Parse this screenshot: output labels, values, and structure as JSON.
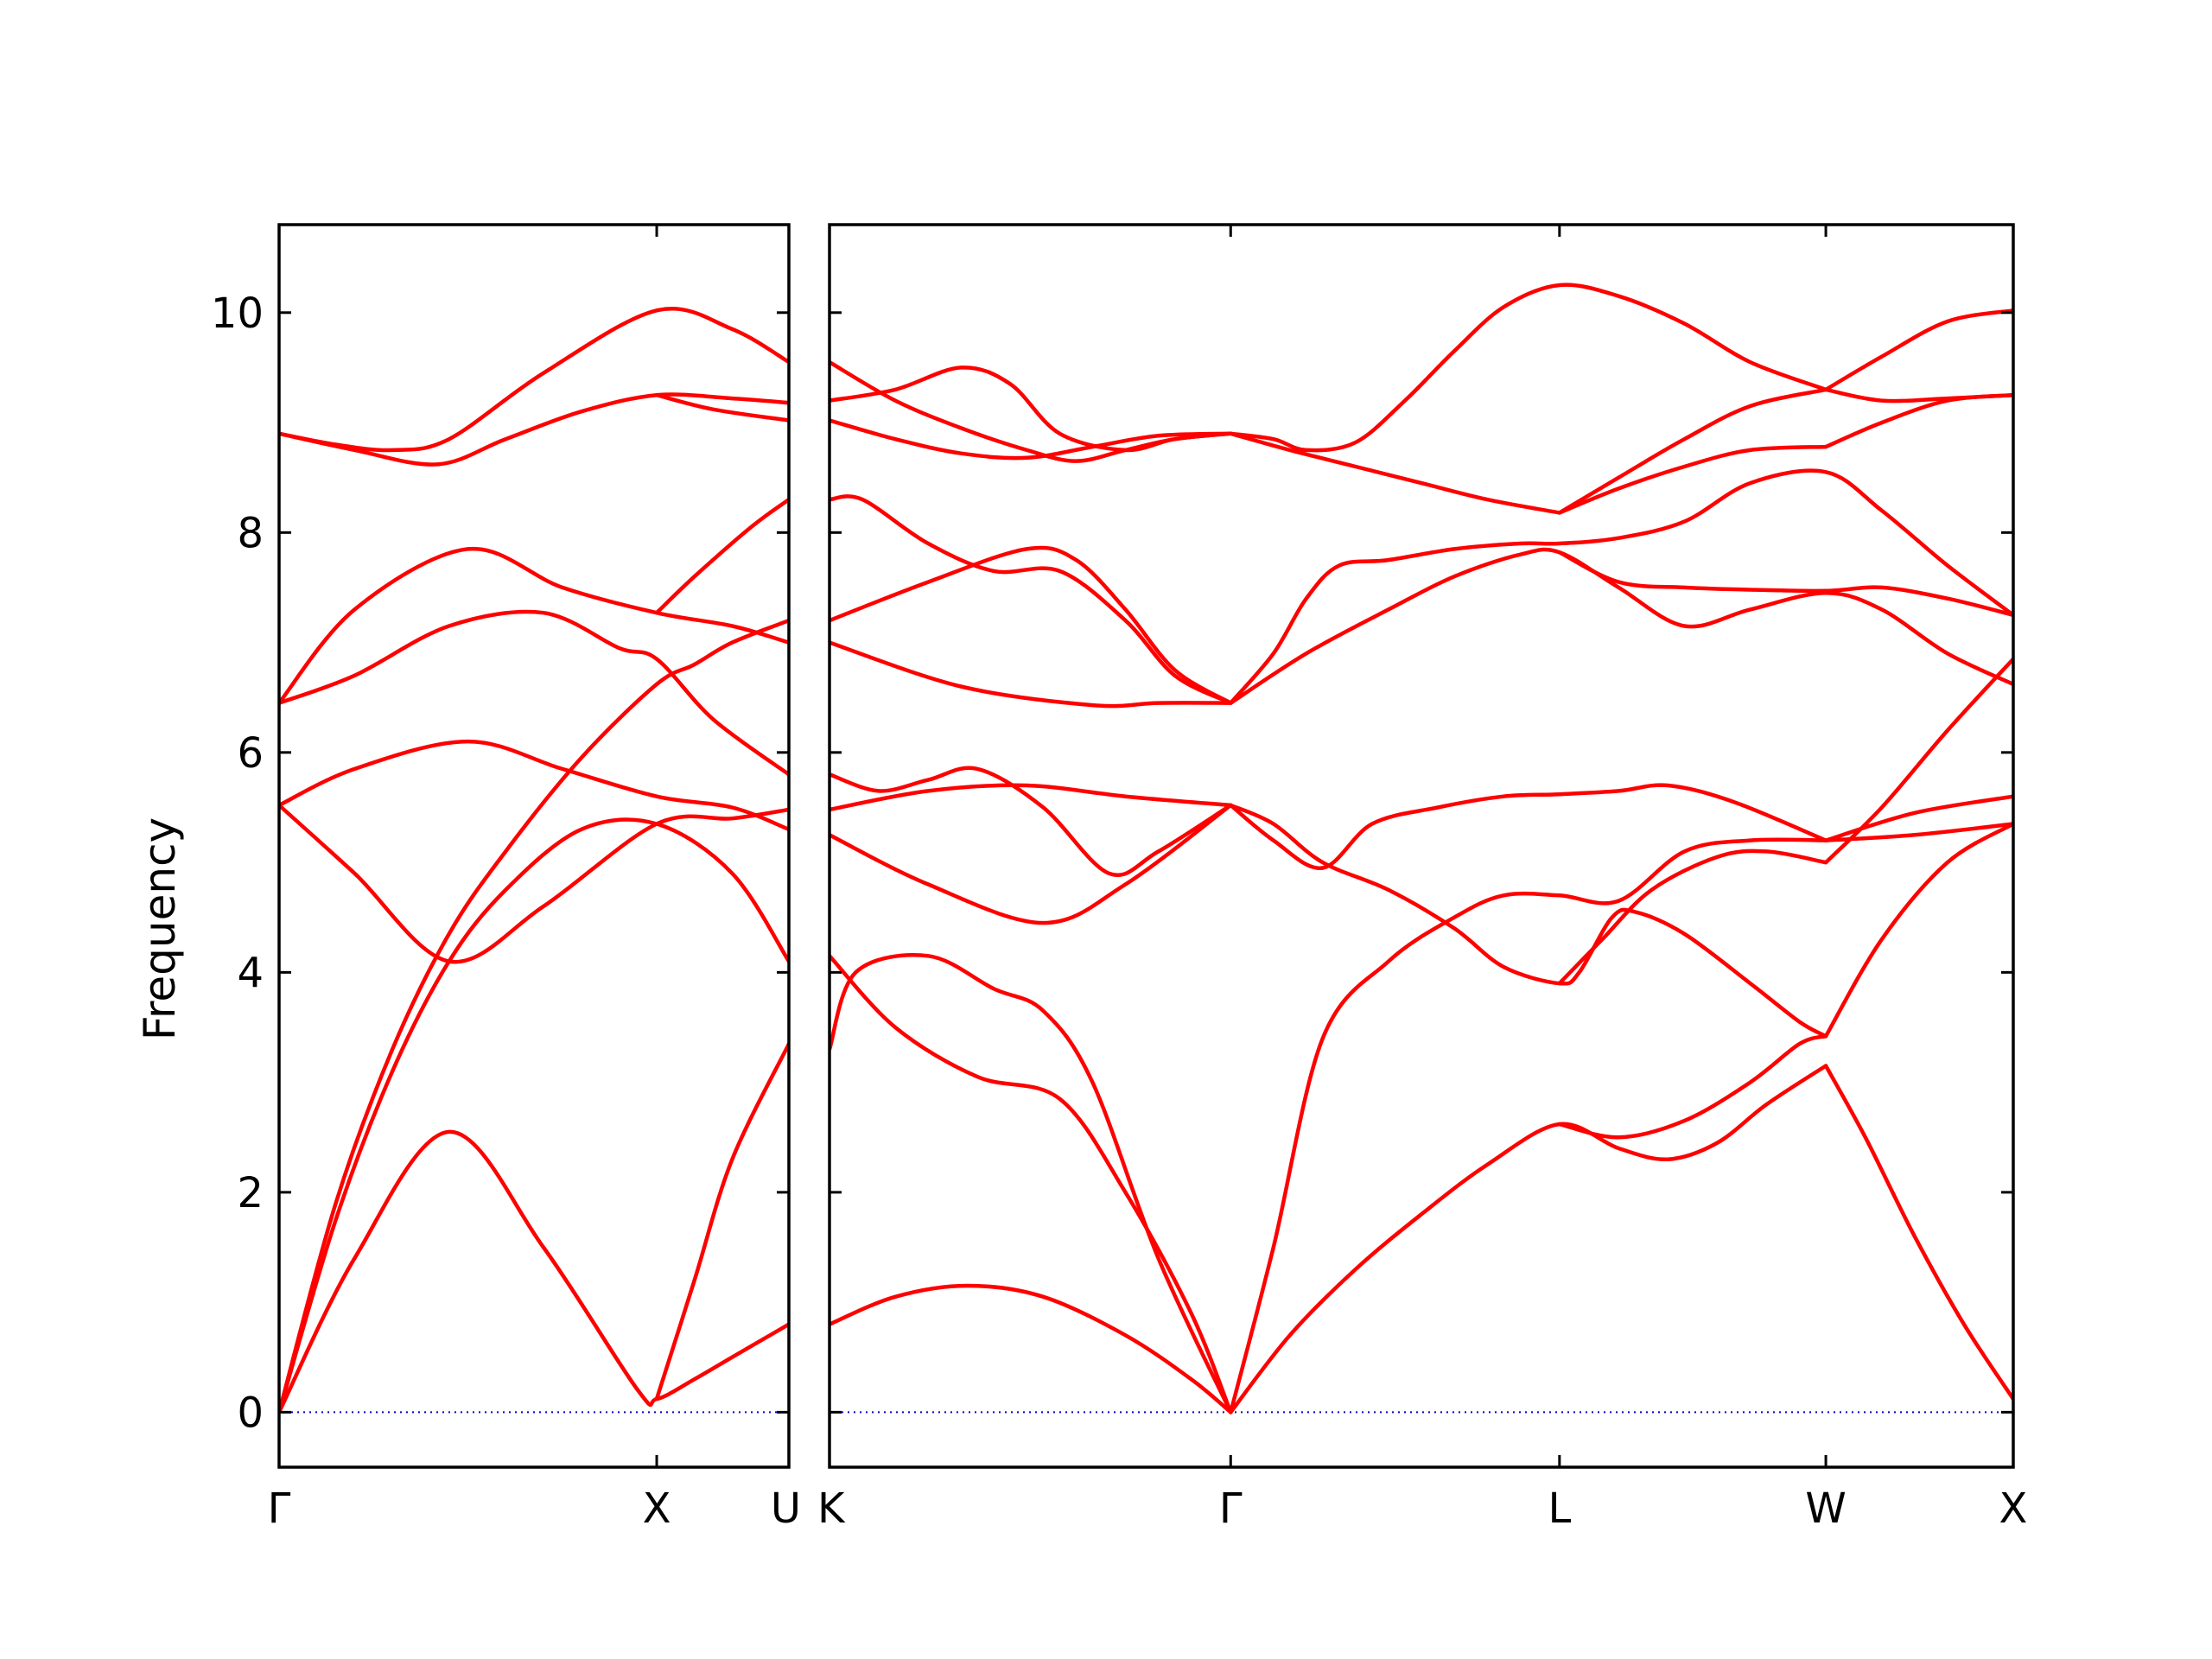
{
  "chart_data": {
    "type": "line",
    "ylabel": "Frequency",
    "ylim": [
      -0.5,
      10.8
    ],
    "yticks": [
      0,
      2,
      4,
      6,
      8,
      10
    ],
    "colors": {
      "band": "#ff0000",
      "zero_line": "#0000cc",
      "frame": "#000000"
    },
    "zero_line": {
      "y": 0,
      "style": "dotted"
    },
    "panels": [
      {
        "name": "left",
        "xlim": [
          0,
          1.35
        ],
        "ticks": [
          {
            "x": 0,
            "label": "Γ"
          },
          {
            "x": 1.0,
            "label": "X"
          },
          {
            "x": 1.35,
            "label": "U"
          }
        ],
        "bands": [
          {
            "x": [
              0,
              0.2,
              0.45,
              0.7,
              0.95,
              1.0,
              1.1,
              1.2,
              1.35
            ],
            "y": [
              0,
              1.4,
              2.55,
              1.5,
              0.2,
              0.12,
              0.3,
              0.5,
              0.8
            ]
          },
          {
            "x": [
              0,
              0.15,
              0.3,
              0.45,
              0.6,
              0.8,
              1.0,
              1.2,
              1.35
            ],
            "y": [
              0,
              1.75,
              3.1,
              4.1,
              4.75,
              5.3,
              5.35,
              4.9,
              4.1
            ]
          },
          {
            "x": [
              0,
              0.15,
              0.3,
              0.45,
              0.6,
              0.8,
              1.0,
              1.1,
              1.2,
              1.35
            ],
            "y": [
              0,
              1.9,
              3.3,
              4.35,
              5.1,
              5.95,
              6.62,
              6.8,
              7.0,
              7.2
            ]
          },
          {
            "x": [
              0,
              0.2,
              0.45,
              0.7,
              1.0,
              1.2,
              1.35
            ],
            "y": [
              5.52,
              4.9,
              4.1,
              4.6,
              5.35,
              5.4,
              5.48
            ]
          },
          {
            "x": [
              0,
              0.2,
              0.5,
              0.75,
              1.0,
              1.2,
              1.35
            ],
            "y": [
              5.52,
              5.85,
              6.1,
              5.85,
              5.6,
              5.5,
              5.3
            ]
          },
          {
            "x": [
              0,
              0.2,
              0.45,
              0.7,
              0.9,
              1.0,
              1.15,
              1.35
            ],
            "y": [
              6.45,
              6.7,
              7.15,
              7.27,
              6.95,
              6.85,
              6.3,
              5.8
            ]
          },
          {
            "x": [
              0,
              0.2,
              0.5,
              0.75,
              1.0,
              1.2,
              1.35
            ],
            "y": [
              6.45,
              7.3,
              7.85,
              7.5,
              7.27,
              7.15,
              7.0
            ]
          },
          {
            "x": [
              0,
              0.15,
              0.3,
              0.45,
              0.7,
              1.0,
              1.2,
              1.35
            ],
            "y": [
              8.9,
              8.8,
              8.75,
              8.85,
              9.45,
              10.02,
              9.85,
              9.55
            ]
          },
          {
            "x": [
              0,
              0.2,
              0.42,
              0.6,
              0.8,
              1.0,
              1.2,
              1.35
            ],
            "y": [
              8.9,
              8.75,
              8.62,
              8.85,
              9.1,
              9.25,
              9.22,
              9.18
            ]
          },
          {
            "x": [
              1.0,
              1.1,
              1.2,
              1.35
            ],
            "y": [
              0.12,
              1.2,
              2.3,
              3.35
            ]
          },
          {
            "x": [
              1.0,
              1.1,
              1.25,
              1.35
            ],
            "y": [
              7.27,
              7.6,
              8.05,
              8.3
            ]
          },
          {
            "x": [
              1.0,
              1.15,
              1.35
            ],
            "y": [
              9.25,
              9.12,
              9.02
            ]
          }
        ]
      },
      {
        "name": "right",
        "xlim": [
          0,
          3.6
        ],
        "ticks": [
          {
            "x": 0,
            "label": "K"
          },
          {
            "x": 1.22,
            "label": "Γ"
          },
          {
            "x": 2.22,
            "label": "L"
          },
          {
            "x": 3.03,
            "label": "W"
          },
          {
            "x": 3.6,
            "label": "X"
          }
        ],
        "bands": [
          {
            "x": [
              0,
              0.2,
              0.42,
              0.65,
              0.9,
              1.1,
              1.22
            ],
            "y": [
              0.8,
              1.05,
              1.15,
              1.05,
              0.7,
              0.3,
              0
            ]
          },
          {
            "x": [
              0,
              0.2,
              0.45,
              0.7,
              0.9,
              1.1,
              1.22
            ],
            "y": [
              4.15,
              3.5,
              3.05,
              2.85,
              2.0,
              0.9,
              0
            ]
          },
          {
            "x": [
              0,
              0.08,
              0.3,
              0.5,
              0.65,
              0.8,
              1.0,
              1.22
            ],
            "y": [
              3.3,
              4.0,
              4.15,
              3.85,
              3.65,
              3.0,
              1.4,
              0
            ]
          },
          {
            "x": [
              1.22,
              1.4,
              1.6,
              1.8,
              2.0,
              2.22,
              2.4,
              2.55,
              2.7,
              2.85,
              3.03
            ],
            "y": [
              0,
              0.7,
              1.3,
              1.8,
              2.25,
              2.62,
              2.4,
              2.3,
              2.45,
              2.8,
              3.15
            ]
          },
          {
            "x": [
              1.22,
              1.35,
              1.5,
              1.7,
              1.9,
              2.05,
              2.22,
              2.4,
              2.6,
              2.8,
              3.03
            ],
            "y": [
              0,
              1.5,
              3.4,
              4.1,
              4.5,
              4.7,
              4.7,
              4.65,
              5.1,
              5.2,
              5.2
            ]
          },
          {
            "x": [
              1.22,
              1.35,
              1.5,
              1.7,
              1.9,
              2.05,
              2.22,
              2.28,
              2.38,
              2.45,
              2.6,
              2.8,
              2.95,
              3.03
            ],
            "y": [
              5.52,
              5.35,
              5.0,
              4.75,
              4.4,
              4.05,
              3.9,
              4.0,
              4.5,
              4.55,
              4.35,
              3.9,
              3.55,
              3.42
            ]
          },
          {
            "x": [
              2.22,
              2.35,
              2.5,
              2.7,
              2.85,
              3.03
            ],
            "y": [
              3.9,
              4.3,
              4.75,
              5.05,
              5.1,
              5.0
            ]
          },
          {
            "x": [
              2.22,
              2.4,
              2.6,
              2.8,
              2.95,
              3.03
            ],
            "y": [
              2.62,
              2.5,
              2.65,
              3.0,
              3.35,
              3.42
            ]
          },
          {
            "x": [
              3.03,
              3.15,
              3.3,
              3.45,
              3.6
            ],
            "y": [
              3.15,
              2.5,
              1.6,
              0.8,
              0.12
            ]
          },
          {
            "x": [
              3.03,
              3.2,
              3.4,
              3.6
            ],
            "y": [
              3.42,
              4.3,
              5.0,
              5.35
            ]
          },
          {
            "x": [
              3.03,
              3.2,
              3.4,
              3.6
            ],
            "y": [
              5.0,
              5.5,
              6.2,
              6.85
            ]
          },
          {
            "x": [
              3.03,
              3.3,
              3.6
            ],
            "y": [
              5.2,
              5.25,
              5.35
            ]
          },
          {
            "x": [
              3.03,
              3.3,
              3.6
            ],
            "y": [
              5.2,
              5.45,
              5.6
            ]
          },
          {
            "x": [
              0,
              0.15,
              0.3,
              0.45,
              0.65,
              0.85,
              1.0,
              1.22
            ],
            "y": [
              5.8,
              5.65,
              5.75,
              5.85,
              5.5,
              4.9,
              5.1,
              5.52
            ]
          },
          {
            "x": [
              0,
              0.3,
              0.6,
              0.9,
              1.22
            ],
            "y": [
              5.48,
              5.65,
              5.7,
              5.6,
              5.52
            ]
          },
          {
            "x": [
              0,
              0.3,
              0.65,
              0.9,
              1.22
            ],
            "y": [
              5.25,
              4.8,
              4.45,
              4.8,
              5.52
            ]
          },
          {
            "x": [
              1.22,
              1.35,
              1.5,
              1.65,
              1.85,
              2.05,
              2.22,
              2.4,
              2.55,
              2.75,
              3.03
            ],
            "y": [
              5.52,
              5.2,
              4.95,
              5.35,
              5.5,
              5.6,
              5.62,
              5.65,
              5.7,
              5.55,
              5.2
            ]
          },
          {
            "x": [
              0,
              0.4,
              0.8,
              1.0,
              1.22
            ],
            "y": [
              7.0,
              6.6,
              6.43,
              6.45,
              6.45
            ]
          },
          {
            "x": [
              0,
              0.3,
              0.6,
              0.75,
              0.9,
              1.05,
              1.22
            ],
            "y": [
              7.2,
              7.55,
              7.85,
              7.75,
              7.3,
              6.75,
              6.45
            ]
          },
          {
            "x": [
              0,
              0.1,
              0.3,
              0.5,
              0.7,
              0.9,
              1.05,
              1.22
            ],
            "y": [
              8.3,
              8.3,
              7.9,
              7.65,
              7.65,
              7.2,
              6.7,
              6.45
            ]
          },
          {
            "x": [
              1.22,
              1.45,
              1.7,
              1.9,
              2.1,
              2.22,
              2.4,
              2.6,
              2.8,
              3.03,
              3.2,
              3.4,
              3.6
            ],
            "y": [
              6.45,
              6.9,
              7.3,
              7.6,
              7.8,
              7.82,
              7.5,
              7.15,
              7.3,
              7.45,
              7.3,
              6.9,
              6.62
            ]
          },
          {
            "x": [
              1.22,
              1.35,
              1.45,
              1.55,
              1.7,
              1.9,
              2.1,
              2.22,
              2.4,
              2.6,
              2.8,
              3.03,
              3.2,
              3.4,
              3.6
            ],
            "y": [
              6.45,
              6.9,
              7.4,
              7.7,
              7.75,
              7.85,
              7.9,
              7.9,
              7.95,
              8.1,
              8.45,
              8.55,
              8.2,
              7.7,
              7.25
            ]
          },
          {
            "x": [
              2.22,
              2.4,
              2.6,
              2.8,
              3.03,
              3.2,
              3.4,
              3.6
            ],
            "y": [
              7.82,
              7.55,
              7.5,
              7.48,
              7.47,
              7.5,
              7.4,
              7.25
            ]
          },
          {
            "x": [
              0,
              0.2,
              0.4,
              0.55,
              0.7,
              0.9,
              1.05,
              1.22
            ],
            "y": [
              9.2,
              9.3,
              9.5,
              9.35,
              8.9,
              8.75,
              8.85,
              8.9
            ]
          },
          {
            "x": [
              0,
              0.2,
              0.4,
              0.6,
              0.75,
              0.9,
              1.05,
              1.22
            ],
            "y": [
              9.55,
              9.2,
              8.95,
              8.75,
              8.65,
              8.75,
              8.85,
              8.9
            ]
          },
          {
            "x": [
              0,
              0.2,
              0.4,
              0.6,
              0.8,
              1.0,
              1.22
            ],
            "y": [
              9.02,
              8.85,
              8.72,
              8.68,
              8.78,
              8.88,
              8.9
            ]
          },
          {
            "x": [
              1.22,
              1.4,
              1.6,
              1.8,
              2.0,
              2.22
            ],
            "y": [
              8.9,
              8.75,
              8.6,
              8.45,
              8.3,
              8.18
            ]
          },
          {
            "x": [
              1.22,
              1.35,
              1.45,
              1.6,
              1.75,
              1.9,
              2.05,
              2.22,
              2.4,
              2.6,
              2.8,
              3.03
            ],
            "y": [
              8.9,
              8.85,
              8.75,
              8.82,
              9.2,
              9.65,
              10.05,
              10.25,
              10.15,
              9.9,
              9.55,
              9.3
            ]
          },
          {
            "x": [
              2.22,
              2.4,
              2.6,
              2.8,
              3.03
            ],
            "y": [
              8.18,
              8.4,
              8.6,
              8.75,
              8.78
            ]
          },
          {
            "x": [
              2.22,
              2.4,
              2.6,
              2.8,
              3.03
            ],
            "y": [
              8.18,
              8.5,
              8.85,
              9.15,
              9.3
            ]
          },
          {
            "x": [
              3.03,
              3.2,
              3.4,
              3.6
            ],
            "y": [
              9.3,
              9.6,
              9.92,
              10.02
            ]
          },
          {
            "x": [
              3.03,
              3.2,
              3.4,
              3.6
            ],
            "y": [
              9.3,
              9.2,
              9.22,
              9.25
            ]
          },
          {
            "x": [
              3.03,
              3.2,
              3.4,
              3.6
            ],
            "y": [
              8.78,
              9.0,
              9.2,
              9.25
            ]
          }
        ]
      }
    ]
  }
}
